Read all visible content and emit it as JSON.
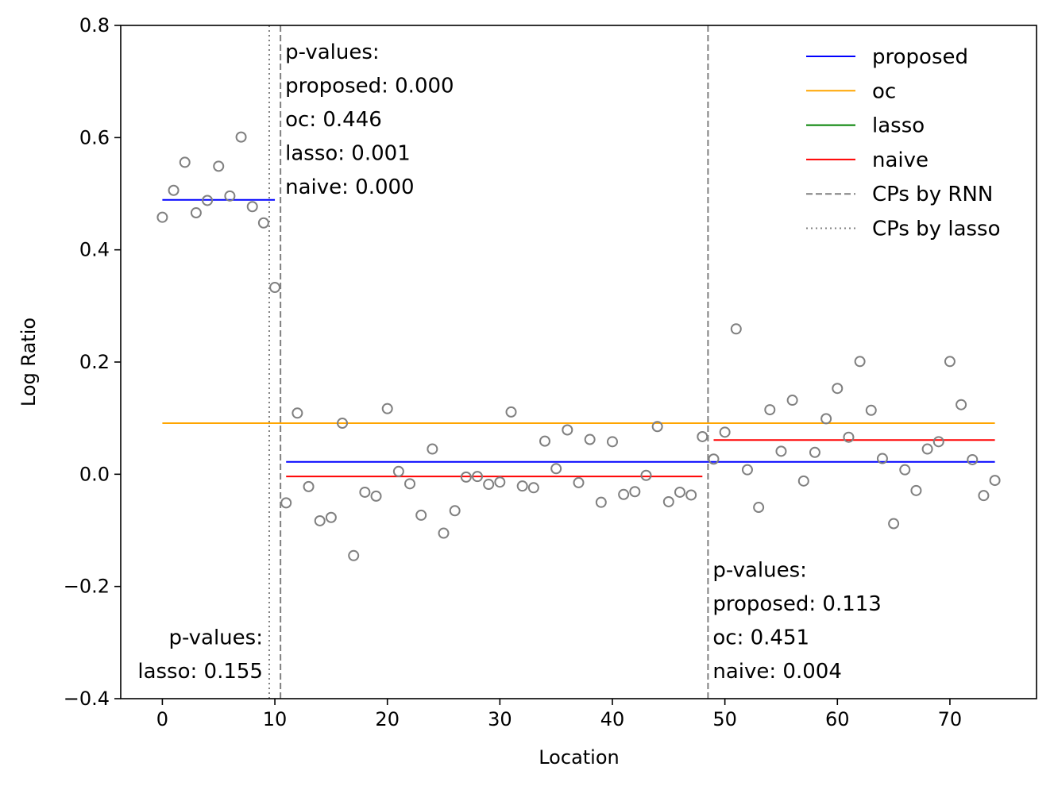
{
  "chart_data": {
    "type": "scatter",
    "title": "",
    "xlabel": "Location",
    "ylabel": "Log Ratio",
    "xlim": [
      -3.7,
      77.7
    ],
    "ylim": [
      -0.4,
      0.8
    ],
    "grid": false,
    "legend_placement": "top-right",
    "x_ticks": [
      0,
      10,
      20,
      30,
      40,
      50,
      60,
      70
    ],
    "x_tick_labels": [
      "0",
      "10",
      "20",
      "30",
      "40",
      "50",
      "60",
      "70"
    ],
    "y_ticks": [
      -0.4,
      -0.2,
      0.0,
      0.2,
      0.4,
      0.6,
      0.8
    ],
    "y_tick_labels": [
      "−0.4",
      "−0.2",
      "0.0",
      "0.2",
      "0.4",
      "0.6",
      "0.8"
    ],
    "points": {
      "color": "#808080",
      "x": [
        0,
        1,
        2,
        3,
        4,
        5,
        6,
        7,
        8,
        9,
        10,
        11,
        12,
        13,
        14,
        15,
        16,
        17,
        18,
        19,
        20,
        21,
        22,
        23,
        24,
        25,
        26,
        27,
        28,
        29,
        30,
        31,
        32,
        33,
        34,
        35,
        36,
        37,
        38,
        39,
        40,
        41,
        42,
        43,
        44,
        45,
        46,
        47,
        48,
        49,
        50,
        51,
        52,
        53,
        54,
        55,
        56,
        57,
        58,
        59,
        60,
        61,
        62,
        63,
        64,
        65,
        66,
        67,
        68,
        69,
        70,
        71,
        72,
        73,
        74
      ],
      "y": [
        0.458,
        0.506,
        0.556,
        0.466,
        0.488,
        0.549,
        0.496,
        0.601,
        0.477,
        0.448,
        0.333,
        -0.051,
        0.109,
        -0.022,
        -0.083,
        -0.077,
        0.091,
        -0.145,
        -0.032,
        -0.039,
        0.117,
        0.005,
        -0.017,
        -0.073,
        0.045,
        -0.105,
        -0.065,
        -0.005,
        -0.004,
        -0.018,
        -0.014,
        0.111,
        -0.021,
        -0.024,
        0.059,
        0.01,
        0.079,
        -0.015,
        0.062,
        -0.05,
        0.058,
        -0.036,
        -0.031,
        -0.002,
        0.085,
        -0.049,
        -0.032,
        -0.037,
        0.067,
        0.027,
        0.075,
        0.259,
        0.008,
        -0.059,
        0.115,
        0.041,
        0.132,
        -0.012,
        0.039,
        0.099,
        0.153,
        0.066,
        0.201,
        0.114,
        0.028,
        -0.088,
        0.008,
        -0.029,
        0.045,
        0.058,
        0.201,
        0.124,
        0.026,
        -0.038,
        -0.011
      ]
    },
    "segments": [
      {
        "series": "proposed",
        "x0": 0,
        "x1": 10,
        "y": 0.489
      },
      {
        "series": "proposed",
        "x0": 11,
        "x1": 74,
        "y": 0.022
      },
      {
        "series": "oc",
        "x0": 0,
        "x1": 74,
        "y": 0.091
      },
      {
        "series": "naive",
        "x0": 11,
        "x1": 48,
        "y": -0.004
      },
      {
        "series": "naive",
        "x0": 49,
        "x1": 74,
        "y": 0.061
      }
    ],
    "vlines": [
      {
        "series": "CPs by lasso",
        "x": 9.5
      },
      {
        "series": "CPs by RNN",
        "x": 10.5
      },
      {
        "series": "CPs by RNN",
        "x": 48.5
      }
    ],
    "series": [
      {
        "name": "proposed",
        "color": "#0000ff",
        "style": "solid"
      },
      {
        "name": "oc",
        "color": "#ffa500",
        "style": "solid"
      },
      {
        "name": "lasso",
        "color": "#008000",
        "style": "solid"
      },
      {
        "name": "naive",
        "color": "#ff0000",
        "style": "solid"
      },
      {
        "name": "CPs by RNN",
        "color": "#808080",
        "style": "dashed"
      },
      {
        "name": "CPs by lasso",
        "color": "#808080",
        "style": "dotted"
      }
    ],
    "annotations": [
      {
        "anchor_x": 10.5,
        "top_y": 0.8,
        "lines": [
          "p-values:",
          "proposed: 0.000",
          "oc: 0.446",
          "lasso: 0.001",
          "naive: 0.000"
        ]
      },
      {
        "anchor_x": 48.5,
        "bottom_y": -0.4,
        "lines": [
          "p-values:",
          "proposed: 0.113",
          "oc: 0.451",
          "naive: 0.004"
        ]
      },
      {
        "anchor_x": 9.5,
        "bottom_y": -0.4,
        "right_aligned": true,
        "lines": [
          "p-values:",
          "lasso: 0.155"
        ]
      }
    ]
  }
}
